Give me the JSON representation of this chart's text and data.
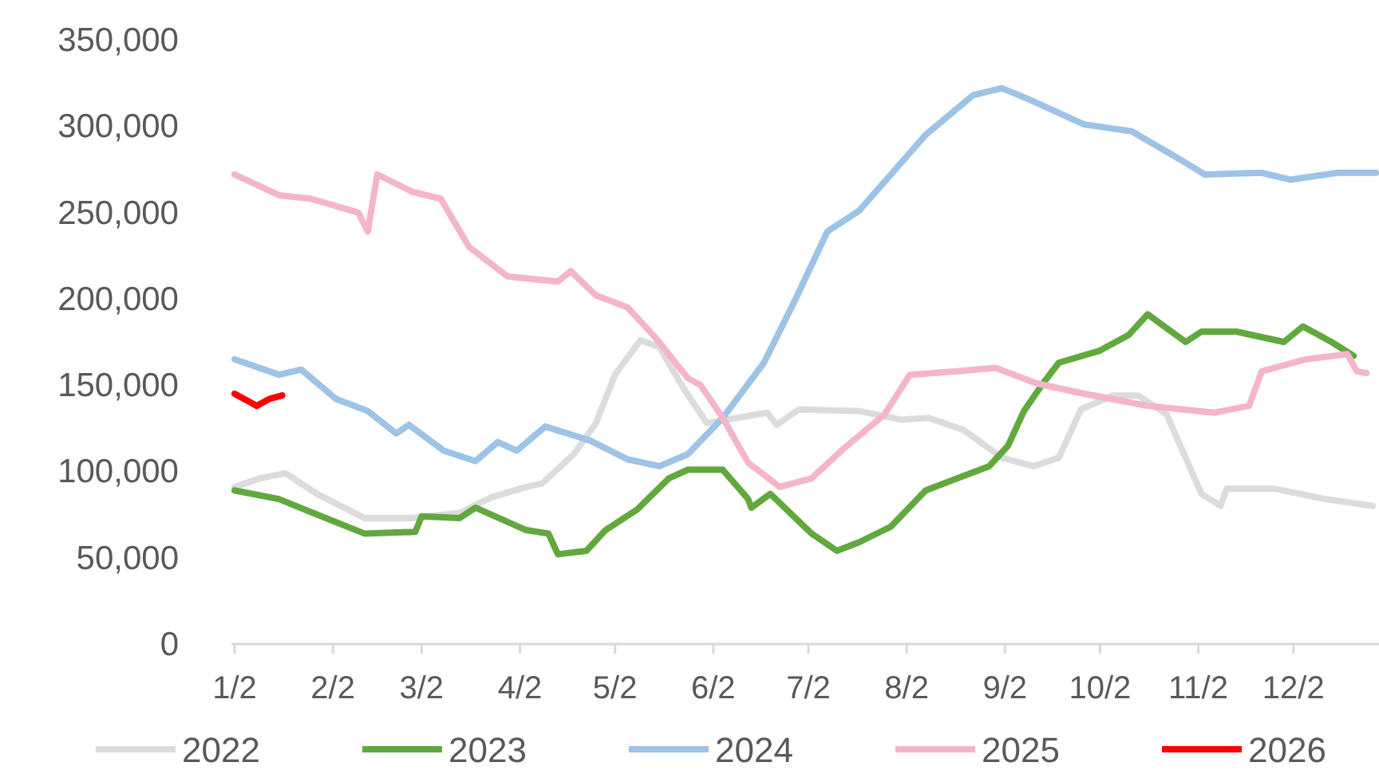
{
  "chart_data": {
    "type": "line",
    "xlim": [
      "--01-01",
      "--12-29"
    ],
    "xticks": [
      {
        "value": "--01-02",
        "label": "1/2"
      },
      {
        "value": "--02-02",
        "label": "2/2"
      },
      {
        "value": "--03-02",
        "label": "3/2"
      },
      {
        "value": "--04-02",
        "label": "4/2"
      },
      {
        "value": "--05-02",
        "label": "5/2"
      },
      {
        "value": "--06-02",
        "label": "6/2"
      },
      {
        "value": "--07-02",
        "label": "7/2"
      },
      {
        "value": "--08-02",
        "label": "8/2"
      },
      {
        "value": "--09-02",
        "label": "9/2"
      },
      {
        "value": "--10-02",
        "label": "10/2"
      },
      {
        "value": "--11-02",
        "label": "11/2"
      },
      {
        "value": "--12-02",
        "label": "12/2"
      }
    ],
    "ylim": [
      0,
      350000
    ],
    "yticks": [
      0,
      {
        "value": 50000,
        "label": "50,000"
      },
      {
        "value": 100000,
        "label": "100,000"
      },
      {
        "value": 150000,
        "label": "150,000"
      },
      {
        "value": 200000,
        "label": "200,000"
      },
      {
        "value": 250000,
        "label": "250,000"
      },
      {
        "value": 300000,
        "label": "300,000"
      },
      {
        "value": 350000,
        "label": "350,000"
      }
    ],
    "legend": "bottom",
    "series": [
      {
        "name": "2022",
        "color": "#dcdcdc",
        "x": [
          "--01-02",
          "--01-10",
          "--01-18",
          "--01-28",
          "--02-12",
          "--02-27",
          "--03-14",
          "--03-24",
          "--04-04",
          "--04-09",
          "--04-19",
          "--04-26",
          "--05-02",
          "--05-10",
          "--05-16",
          "--05-24",
          "--05-31",
          "--06-19",
          "--06-22",
          "--06-29",
          "--07-18",
          "--07-31",
          "--08-09",
          "--08-20",
          "--09-01",
          "--09-11",
          "--09-19",
          "--09-26",
          "--10-06",
          "--10-14",
          "--10-23",
          "--11-03",
          "--11-09",
          "--11-11",
          "--11-26",
          "--12-12",
          "--12-27"
        ],
        "values": [
          91000,
          96000,
          99000,
          87000,
          73000,
          73000,
          76000,
          85000,
          91000,
          93000,
          110000,
          128000,
          156000,
          176000,
          172000,
          147000,
          128000,
          134000,
          127000,
          136000,
          135000,
          130000,
          131000,
          124000,
          108000,
          103000,
          108000,
          136000,
          144000,
          144000,
          133000,
          87000,
          80000,
          90000,
          90000,
          84000,
          80000
        ]
      },
      {
        "name": "2023",
        "color": "#62a83e",
        "x": [
          "--01-02",
          "--01-16",
          "--01-28",
          "--02-12",
          "--02-28",
          "--03-02",
          "--03-14",
          "--03-19",
          "--04-04",
          "--04-11",
          "--04-14",
          "--04-23",
          "--04-29",
          "--05-09",
          "--05-19",
          "--05-25",
          "--06-05",
          "--06-13",
          "--06-14",
          "--06-20",
          "--07-03",
          "--07-11",
          "--07-18",
          "--07-28",
          "--08-08",
          "--08-18",
          "--08-28",
          "--09-03",
          "--09-08",
          "--09-14",
          "--09-19",
          "--10-02",
          "--10-11",
          "--10-17",
          "--10-29",
          "--11-03",
          "--11-14",
          "--11-29",
          "--12-05",
          "--12-14",
          "--12-21"
        ],
        "values": [
          89000,
          84000,
          75000,
          64000,
          65000,
          74000,
          73000,
          79000,
          66000,
          64000,
          52000,
          54000,
          66000,
          78000,
          96000,
          101000,
          101000,
          84000,
          79000,
          87000,
          64000,
          54000,
          59000,
          68000,
          89000,
          96000,
          103000,
          115000,
          135000,
          151000,
          163000,
          170000,
          179000,
          191000,
          175000,
          181000,
          181000,
          175000,
          184000,
          175000,
          167000
        ]
      },
      {
        "name": "2024",
        "color": "#9dc3e6",
        "x": [
          "--01-02",
          "--01-16",
          "--01-23",
          "--02-03",
          "--02-13",
          "--02-22",
          "--02-26",
          "--03-09",
          "--03-19",
          "--03-26",
          "--04-01",
          "--04-10",
          "--04-24",
          "--05-06",
          "--05-16",
          "--05-25",
          "--06-05",
          "--06-18",
          "--06-28",
          "--07-08",
          "--07-18",
          "--08-08",
          "--08-23",
          "--09-01",
          "--09-09",
          "--09-27",
          "--10-12",
          "--10-27",
          "--11-04",
          "--11-22",
          "--12-01",
          "--12-16",
          "--12-28"
        ],
        "values": [
          165000,
          156000,
          159000,
          142000,
          135000,
          122000,
          127000,
          112000,
          106000,
          117000,
          112000,
          126000,
          118000,
          107000,
          103000,
          110000,
          131000,
          163000,
          200000,
          239000,
          251000,
          295000,
          318000,
          322000,
          316000,
          301000,
          297000,
          281000,
          272000,
          273000,
          269000,
          273000,
          273000
        ]
      },
      {
        "name": "2025",
        "color": "#f4b5c9",
        "x": [
          "--01-02",
          "--01-16",
          "--01-26",
          "--02-10",
          "--02-13",
          "--02-16",
          "--02-27",
          "--03-08",
          "--03-17",
          "--03-29",
          "--04-14",
          "--04-18",
          "--04-26",
          "--05-06",
          "--05-15",
          "--05-25",
          "--05-29",
          "--06-05",
          "--06-13",
          "--06-23",
          "--07-03",
          "--07-13",
          "--07-26",
          "--08-03",
          "--08-18",
          "--08-30",
          "--09-12",
          "--09-27",
          "--10-17",
          "--11-07",
          "--11-18",
          "--11-22",
          "--12-06",
          "--12-19",
          "--12-22",
          "--12-25"
        ],
        "values": [
          272000,
          260000,
          258000,
          250000,
          239000,
          272000,
          262000,
          258000,
          230000,
          213000,
          210000,
          216000,
          202000,
          195000,
          177000,
          154000,
          150000,
          131000,
          105000,
          91000,
          96000,
          113000,
          133000,
          156000,
          158000,
          160000,
          151000,
          145000,
          138000,
          134000,
          138000,
          158000,
          165000,
          168000,
          158000,
          157000
        ]
      },
      {
        "name": "2026",
        "color": "#ff0000",
        "x": [
          "--01-02",
          "--01-05",
          "--01-09",
          "--01-13",
          "--01-17"
        ],
        "values": [
          145000,
          142000,
          138000,
          142000,
          144000
        ]
      }
    ]
  }
}
